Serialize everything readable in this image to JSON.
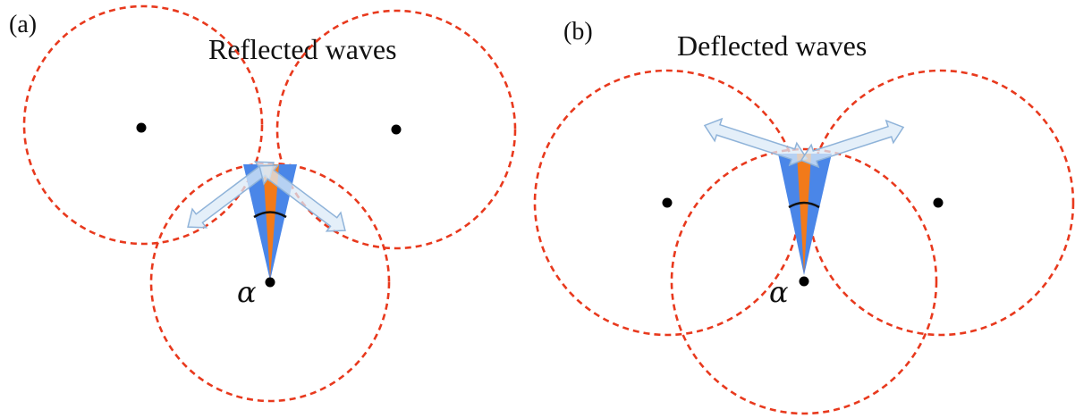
{
  "panels": [
    {
      "id": "a",
      "label": "(a)",
      "title": "Reflected waves",
      "angle_symbol": "α"
    },
    {
      "id": "b",
      "label": "(b)",
      "title": "Deflected waves",
      "angle_symbol": "α"
    }
  ],
  "colors": {
    "circle": "#e8391d",
    "wedge_outer": "#4a86e8",
    "wedge_inner": "#f27a1a",
    "arrow_fill": "#dbe9f7",
    "arrow_stroke": "#8fb3d9",
    "dot": "#000000"
  }
}
